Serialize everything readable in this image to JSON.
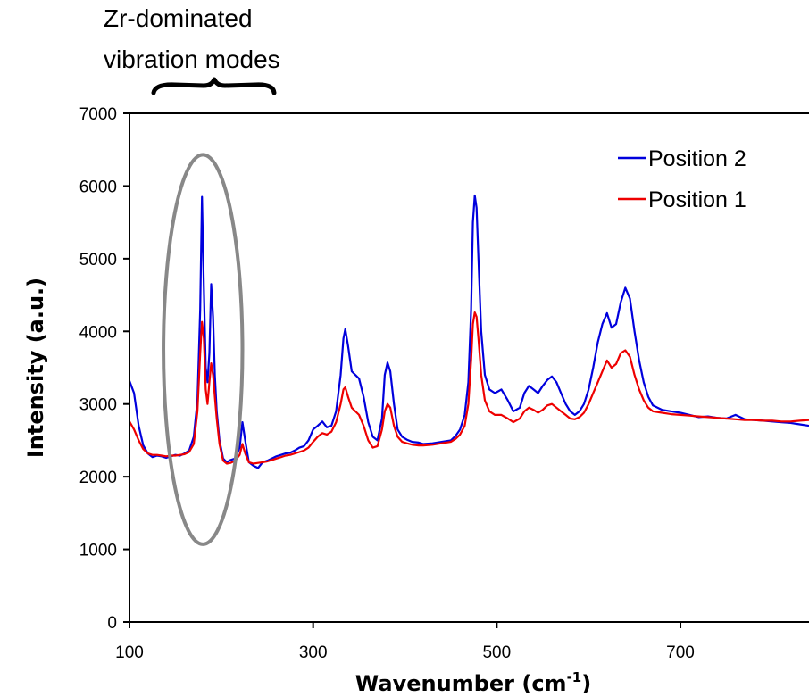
{
  "chart_data": {
    "type": "line",
    "title": "",
    "xlabel": "Wavenumber (cm",
    "xlabel_sup": "-1",
    "xlabel_close": ")",
    "ylabel": "Intensity (a.u.)",
    "xlim": [
      100,
      840
    ],
    "ylim": [
      0,
      7000
    ],
    "xticks": [
      100,
      300,
      500,
      700
    ],
    "yticks": [
      0,
      1000,
      2000,
      3000,
      4000,
      5000,
      6000,
      7000
    ],
    "grid": false,
    "legend_position": "top-right",
    "annotation": {
      "line1": "Zr-dominated",
      "line2": "vibration modes",
      "ellipse_center": [
        180,
        3750
      ],
      "ellipse_rx_data": 43,
      "ellipse_ry_data": 2680
    },
    "series": [
      {
        "name": "Position 2",
        "color": "#0000dd",
        "points": [
          [
            100,
            3320
          ],
          [
            105,
            3150
          ],
          [
            110,
            2700
          ],
          [
            115,
            2430
          ],
          [
            120,
            2320
          ],
          [
            125,
            2270
          ],
          [
            130,
            2290
          ],
          [
            135,
            2280
          ],
          [
            140,
            2260
          ],
          [
            145,
            2280
          ],
          [
            150,
            2300
          ],
          [
            155,
            2290
          ],
          [
            160,
            2320
          ],
          [
            165,
            2360
          ],
          [
            170,
            2550
          ],
          [
            174,
            3050
          ],
          [
            177,
            4300
          ],
          [
            179,
            5850
          ],
          [
            181,
            4600
          ],
          [
            183,
            3500
          ],
          [
            185,
            3300
          ],
          [
            187,
            3700
          ],
          [
            189,
            4650
          ],
          [
            191,
            4200
          ],
          [
            193,
            3400
          ],
          [
            195,
            2900
          ],
          [
            198,
            2500
          ],
          [
            202,
            2250
          ],
          [
            206,
            2200
          ],
          [
            210,
            2230
          ],
          [
            215,
            2250
          ],
          [
            220,
            2400
          ],
          [
            223,
            2750
          ],
          [
            226,
            2500
          ],
          [
            230,
            2200
          ],
          [
            235,
            2150
          ],
          [
            240,
            2120
          ],
          [
            245,
            2200
          ],
          [
            250,
            2220
          ],
          [
            255,
            2250
          ],
          [
            260,
            2280
          ],
          [
            265,
            2300
          ],
          [
            270,
            2320
          ],
          [
            275,
            2330
          ],
          [
            280,
            2360
          ],
          [
            285,
            2400
          ],
          [
            290,
            2420
          ],
          [
            295,
            2500
          ],
          [
            300,
            2650
          ],
          [
            305,
            2700
          ],
          [
            310,
            2760
          ],
          [
            315,
            2680
          ],
          [
            320,
            2700
          ],
          [
            325,
            2900
          ],
          [
            330,
            3400
          ],
          [
            333,
            3900
          ],
          [
            335,
            4030
          ],
          [
            338,
            3800
          ],
          [
            342,
            3450
          ],
          [
            346,
            3400
          ],
          [
            350,
            3350
          ],
          [
            355,
            3100
          ],
          [
            360,
            2750
          ],
          [
            365,
            2550
          ],
          [
            370,
            2500
          ],
          [
            375,
            2800
          ],
          [
            378,
            3400
          ],
          [
            381,
            3570
          ],
          [
            384,
            3450
          ],
          [
            388,
            3000
          ],
          [
            392,
            2650
          ],
          [
            397,
            2550
          ],
          [
            402,
            2510
          ],
          [
            408,
            2480
          ],
          [
            415,
            2470
          ],
          [
            420,
            2450
          ],
          [
            430,
            2460
          ],
          [
            440,
            2480
          ],
          [
            450,
            2500
          ],
          [
            455,
            2560
          ],
          [
            460,
            2650
          ],
          [
            465,
            2850
          ],
          [
            469,
            3300
          ],
          [
            472,
            4300
          ],
          [
            474,
            5500
          ],
          [
            476,
            5870
          ],
          [
            478,
            5700
          ],
          [
            480,
            5000
          ],
          [
            483,
            4000
          ],
          [
            487,
            3400
          ],
          [
            492,
            3200
          ],
          [
            498,
            3150
          ],
          [
            505,
            3200
          ],
          [
            512,
            3050
          ],
          [
            518,
            2900
          ],
          [
            525,
            2950
          ],
          [
            530,
            3150
          ],
          [
            535,
            3250
          ],
          [
            540,
            3200
          ],
          [
            545,
            3150
          ],
          [
            550,
            3250
          ],
          [
            555,
            3330
          ],
          [
            560,
            3380
          ],
          [
            565,
            3300
          ],
          [
            570,
            3150
          ],
          [
            575,
            3000
          ],
          [
            580,
            2900
          ],
          [
            585,
            2850
          ],
          [
            590,
            2900
          ],
          [
            595,
            3000
          ],
          [
            600,
            3200
          ],
          [
            605,
            3500
          ],
          [
            610,
            3850
          ],
          [
            615,
            4100
          ],
          [
            620,
            4250
          ],
          [
            625,
            4050
          ],
          [
            630,
            4100
          ],
          [
            635,
            4400
          ],
          [
            640,
            4600
          ],
          [
            645,
            4450
          ],
          [
            650,
            4000
          ],
          [
            655,
            3600
          ],
          [
            660,
            3300
          ],
          [
            665,
            3100
          ],
          [
            670,
            2980
          ],
          [
            680,
            2920
          ],
          [
            690,
            2900
          ],
          [
            700,
            2880
          ],
          [
            710,
            2850
          ],
          [
            720,
            2820
          ],
          [
            730,
            2830
          ],
          [
            740,
            2810
          ],
          [
            750,
            2800
          ],
          [
            760,
            2850
          ],
          [
            770,
            2790
          ],
          [
            780,
            2780
          ],
          [
            790,
            2770
          ],
          [
            800,
            2760
          ],
          [
            810,
            2750
          ],
          [
            820,
            2740
          ],
          [
            830,
            2720
          ],
          [
            840,
            2700
          ]
        ]
      },
      {
        "name": "Position 1",
        "color": "#ee0000",
        "points": [
          [
            100,
            2760
          ],
          [
            105,
            2650
          ],
          [
            110,
            2500
          ],
          [
            115,
            2380
          ],
          [
            120,
            2320
          ],
          [
            125,
            2300
          ],
          [
            130,
            2300
          ],
          [
            135,
            2290
          ],
          [
            140,
            2280
          ],
          [
            145,
            2290
          ],
          [
            150,
            2290
          ],
          [
            155,
            2300
          ],
          [
            160,
            2310
          ],
          [
            165,
            2340
          ],
          [
            170,
            2450
          ],
          [
            174,
            2900
          ],
          [
            177,
            3700
          ],
          [
            179,
            4130
          ],
          [
            181,
            3900
          ],
          [
            183,
            3200
          ],
          [
            185,
            3000
          ],
          [
            187,
            3300
          ],
          [
            189,
            3560
          ],
          [
            191,
            3400
          ],
          [
            193,
            3100
          ],
          [
            195,
            2800
          ],
          [
            198,
            2450
          ],
          [
            202,
            2220
          ],
          [
            206,
            2180
          ],
          [
            210,
            2190
          ],
          [
            215,
            2220
          ],
          [
            220,
            2300
          ],
          [
            223,
            2450
          ],
          [
            226,
            2320
          ],
          [
            230,
            2200
          ],
          [
            235,
            2180
          ],
          [
            240,
            2190
          ],
          [
            245,
            2200
          ],
          [
            250,
            2210
          ],
          [
            255,
            2230
          ],
          [
            260,
            2250
          ],
          [
            265,
            2270
          ],
          [
            270,
            2290
          ],
          [
            275,
            2300
          ],
          [
            280,
            2320
          ],
          [
            285,
            2340
          ],
          [
            290,
            2360
          ],
          [
            295,
            2400
          ],
          [
            300,
            2480
          ],
          [
            305,
            2550
          ],
          [
            310,
            2600
          ],
          [
            315,
            2580
          ],
          [
            320,
            2620
          ],
          [
            325,
            2750
          ],
          [
            330,
            3000
          ],
          [
            333,
            3200
          ],
          [
            335,
            3230
          ],
          [
            338,
            3100
          ],
          [
            342,
            2950
          ],
          [
            346,
            2900
          ],
          [
            350,
            2850
          ],
          [
            355,
            2700
          ],
          [
            360,
            2500
          ],
          [
            365,
            2400
          ],
          [
            370,
            2420
          ],
          [
            375,
            2650
          ],
          [
            378,
            2900
          ],
          [
            381,
            3000
          ],
          [
            384,
            2950
          ],
          [
            388,
            2700
          ],
          [
            392,
            2550
          ],
          [
            397,
            2480
          ],
          [
            402,
            2460
          ],
          [
            408,
            2440
          ],
          [
            415,
            2430
          ],
          [
            420,
            2430
          ],
          [
            430,
            2440
          ],
          [
            440,
            2460
          ],
          [
            450,
            2480
          ],
          [
            455,
            2520
          ],
          [
            460,
            2580
          ],
          [
            465,
            2700
          ],
          [
            469,
            3000
          ],
          [
            472,
            3600
          ],
          [
            474,
            4100
          ],
          [
            476,
            4260
          ],
          [
            478,
            4200
          ],
          [
            480,
            3900
          ],
          [
            483,
            3400
          ],
          [
            487,
            3050
          ],
          [
            492,
            2900
          ],
          [
            498,
            2850
          ],
          [
            505,
            2850
          ],
          [
            512,
            2800
          ],
          [
            518,
            2750
          ],
          [
            525,
            2800
          ],
          [
            530,
            2900
          ],
          [
            535,
            2950
          ],
          [
            540,
            2920
          ],
          [
            545,
            2880
          ],
          [
            550,
            2920
          ],
          [
            555,
            2980
          ],
          [
            560,
            3000
          ],
          [
            565,
            2950
          ],
          [
            570,
            2900
          ],
          [
            575,
            2850
          ],
          [
            580,
            2800
          ],
          [
            585,
            2790
          ],
          [
            590,
            2820
          ],
          [
            595,
            2880
          ],
          [
            600,
            3000
          ],
          [
            605,
            3150
          ],
          [
            610,
            3300
          ],
          [
            615,
            3450
          ],
          [
            620,
            3600
          ],
          [
            625,
            3500
          ],
          [
            630,
            3550
          ],
          [
            635,
            3700
          ],
          [
            640,
            3740
          ],
          [
            645,
            3650
          ],
          [
            650,
            3400
          ],
          [
            655,
            3200
          ],
          [
            660,
            3050
          ],
          [
            665,
            2950
          ],
          [
            670,
            2900
          ],
          [
            680,
            2880
          ],
          [
            690,
            2860
          ],
          [
            700,
            2850
          ],
          [
            710,
            2840
          ],
          [
            720,
            2830
          ],
          [
            730,
            2820
          ],
          [
            740,
            2810
          ],
          [
            750,
            2800
          ],
          [
            760,
            2790
          ],
          [
            770,
            2780
          ],
          [
            780,
            2780
          ],
          [
            790,
            2770
          ],
          [
            800,
            2770
          ],
          [
            810,
            2760
          ],
          [
            820,
            2760
          ],
          [
            830,
            2770
          ],
          [
            840,
            2780
          ]
        ]
      }
    ]
  }
}
